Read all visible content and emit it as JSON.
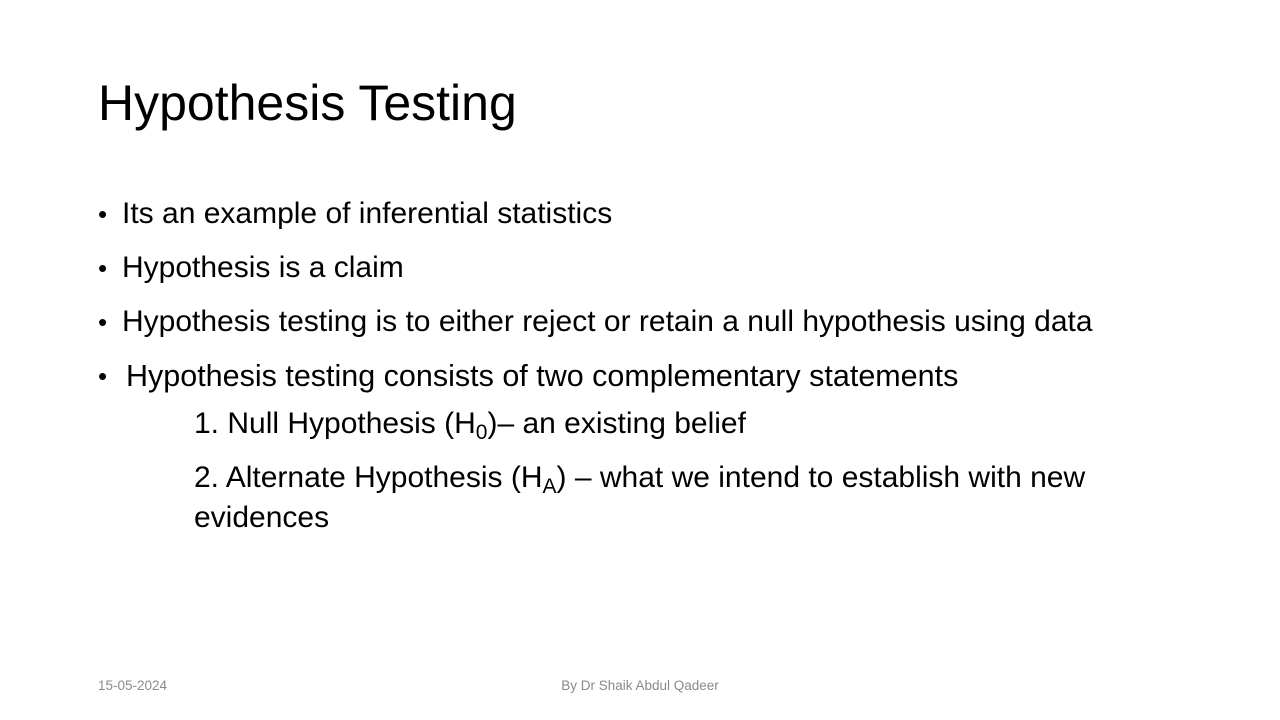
{
  "slide": {
    "title": "Hypothesis Testing",
    "bullets": [
      "Its an example of inferential statistics",
      "Hypothesis is a claim",
      "Hypothesis testing is to either reject or retain a null hypothesis using data",
      "Hypothesis testing consists of two complementary statements"
    ],
    "bullet_marker": "•",
    "sub_items": {
      "null": {
        "prefix": "1. Null Hypothesis (H",
        "subscript": "0",
        "suffix": ")– an existing belief"
      },
      "alternate": {
        "prefix": "2. Alternate Hypothesis (H",
        "subscript": "A",
        "suffix": ") – what we intend to establish with new evidences"
      }
    }
  },
  "footer": {
    "date": "15-05-2024",
    "author": "By Dr Shaik Abdul Qadeer"
  }
}
